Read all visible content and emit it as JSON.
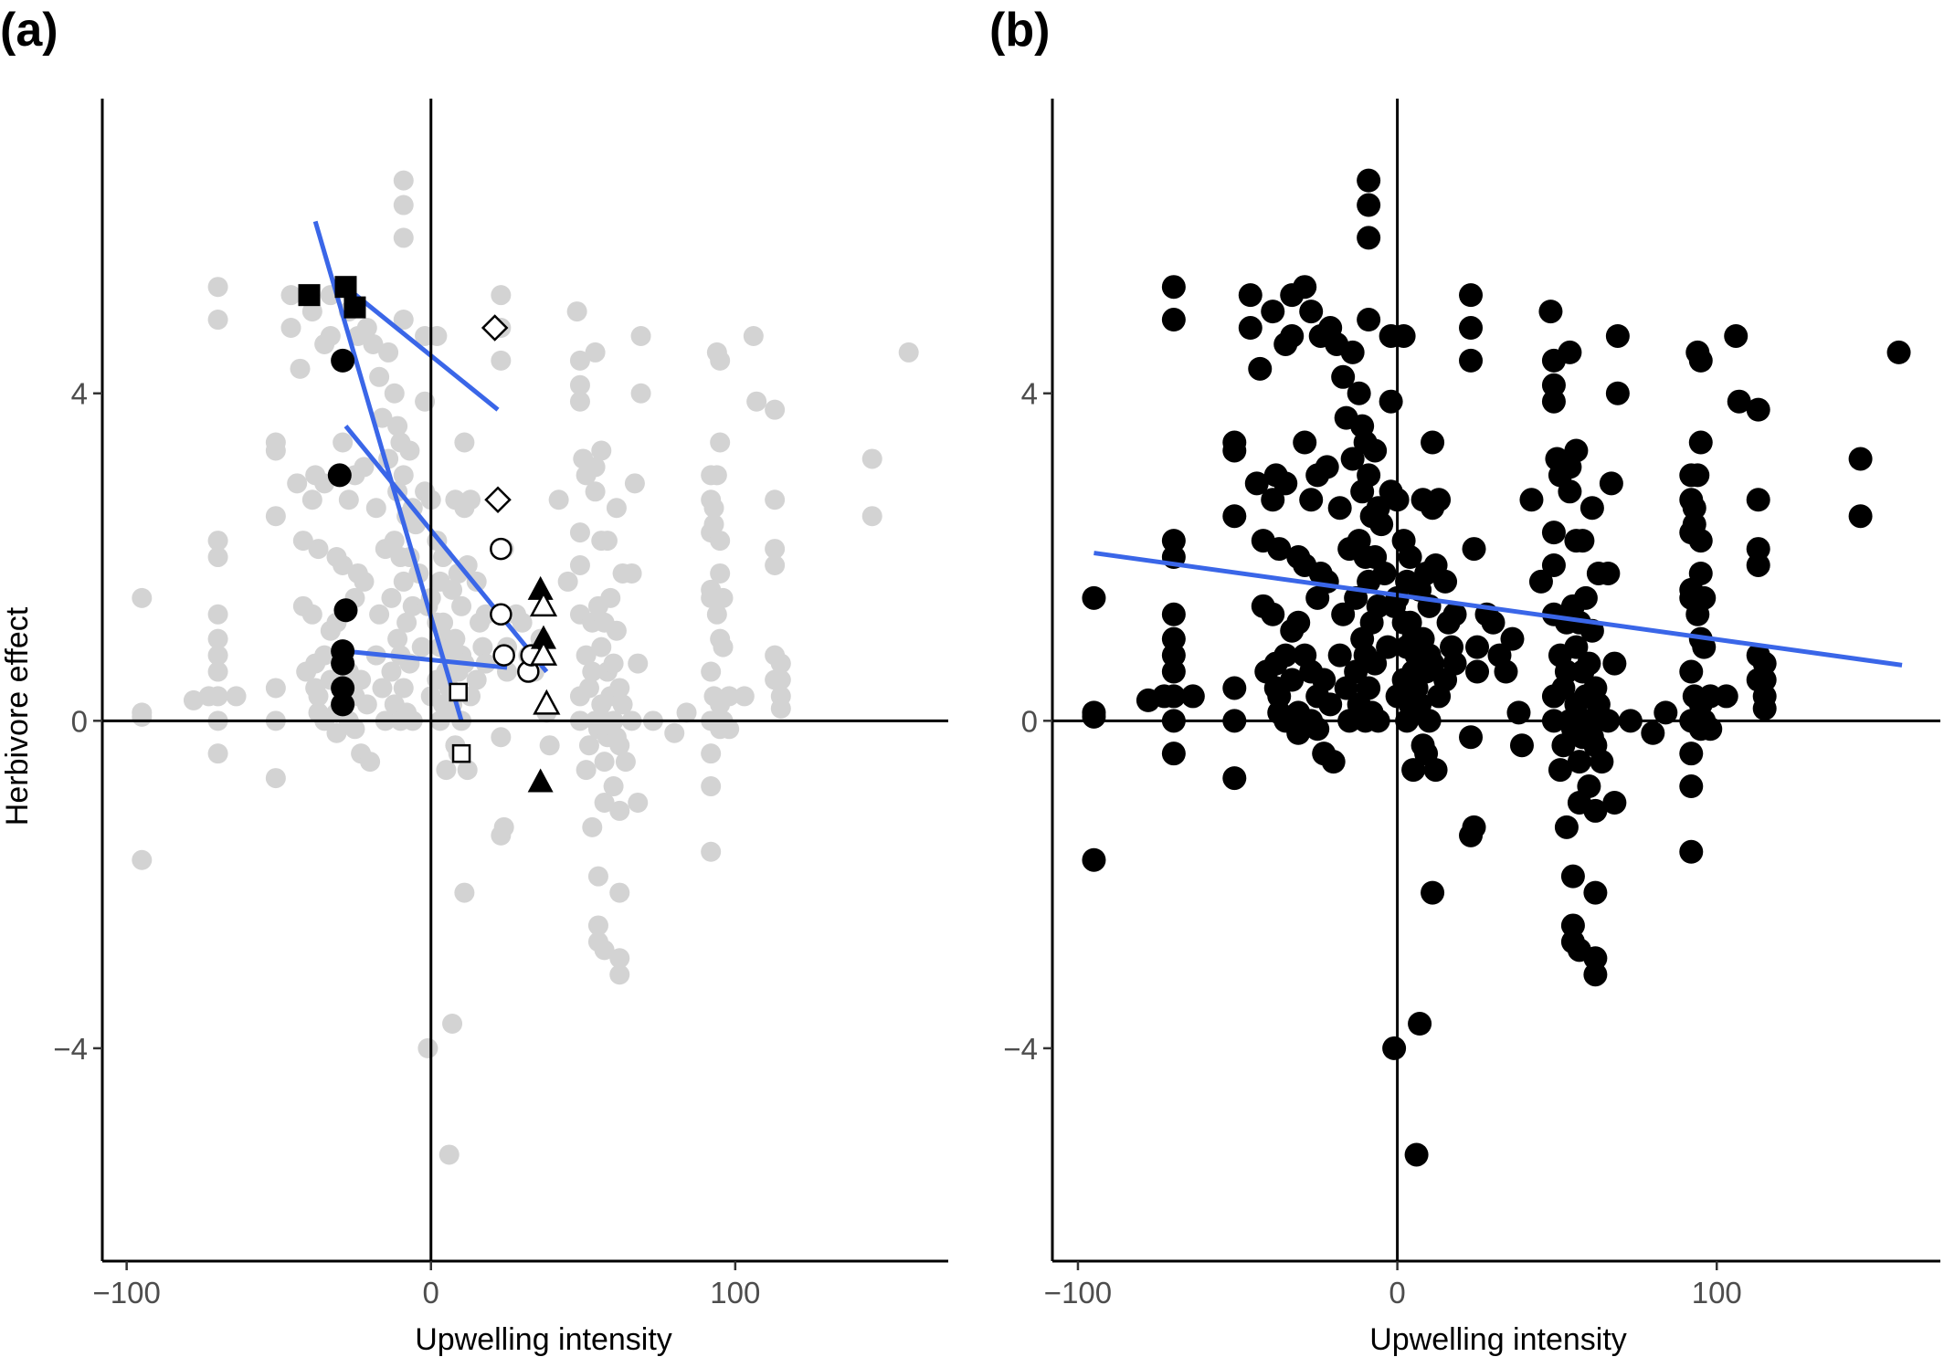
{
  "chart_data": [
    {
      "panel": "(a)",
      "type": "scatter",
      "xlabel": "Upwelling intensity",
      "ylabel": "Herbivore effect",
      "xlim": [
        -108,
        170
      ],
      "ylim": [
        -6.6,
        7.6
      ],
      "xticks": [
        -100,
        0,
        100
      ],
      "xtick_labels": [
        "−100",
        "0",
        "100"
      ],
      "yticks": [
        -4,
        0,
        4
      ],
      "ytick_labels": [
        "−4",
        "0",
        "4"
      ],
      "zero_lines": true,
      "grid": false,
      "background_color": "#d3d3d3",
      "background_points": [
        [
          -95,
          0.1
        ],
        [
          -95,
          0.05
        ],
        [
          -95,
          1.5
        ],
        [
          -95,
          -1.7
        ],
        [
          -70,
          5.3
        ],
        [
          -70,
          4.9
        ],
        [
          -70,
          2.2
        ],
        [
          -70,
          2.0
        ],
        [
          -70,
          1.3
        ],
        [
          -70,
          1.0
        ],
        [
          -70,
          0.8
        ],
        [
          -70,
          0.6
        ],
        [
          -70,
          0.3
        ],
        [
          -70,
          0.0
        ],
        [
          -70,
          -0.4
        ],
        [
          -78,
          0.25
        ],
        [
          -73,
          0.3
        ],
        [
          -64,
          0.3
        ],
        [
          -51,
          3.4
        ],
        [
          -51,
          3.3
        ],
        [
          -51,
          2.5
        ],
        [
          -51,
          0.4
        ],
        [
          -51,
          0.0
        ],
        [
          -51,
          -0.7
        ],
        [
          -46,
          5.2
        ],
        [
          -46,
          4.8
        ],
        [
          -44,
          2.9
        ],
        [
          -43,
          4.3
        ],
        [
          -42,
          1.4
        ],
        [
          -42,
          2.2
        ],
        [
          -41,
          0.6
        ],
        [
          -39,
          5.0
        ],
        [
          -39,
          2.7
        ],
        [
          -39,
          1.3
        ],
        [
          -38,
          3.0
        ],
        [
          -38,
          0.7
        ],
        [
          -38,
          0.4
        ],
        [
          -37,
          2.1
        ],
        [
          -37,
          0.3
        ],
        [
          -37,
          0.1
        ],
        [
          -35,
          4.6
        ],
        [
          -35,
          2.9
        ],
        [
          -35,
          0.8
        ],
        [
          -35,
          0.0
        ],
        [
          -33,
          5.2
        ],
        [
          -33,
          4.7
        ],
        [
          -33,
          1.1
        ],
        [
          -33,
          0.5
        ],
        [
          -31,
          2.0
        ],
        [
          -31,
          1.2
        ],
        [
          -31,
          0.1
        ],
        [
          -31,
          -0.15
        ],
        [
          -29,
          5.3
        ],
        [
          -29,
          3.4
        ],
        [
          -29,
          1.9
        ],
        [
          -29,
          0.8
        ],
        [
          -27,
          5.0
        ],
        [
          -27,
          2.7
        ],
        [
          -27,
          0.6
        ],
        [
          -27,
          0.0
        ],
        [
          -25,
          3.0
        ],
        [
          -25,
          1.5
        ],
        [
          -25,
          0.3
        ],
        [
          -25,
          -0.1
        ],
        [
          -24,
          4.7
        ],
        [
          -24,
          1.8
        ],
        [
          -23,
          0.5
        ],
        [
          -23,
          -0.4
        ],
        [
          -22,
          3.1
        ],
        [
          -22,
          1.7
        ],
        [
          -21,
          4.8
        ],
        [
          -21,
          0.2
        ],
        [
          -20,
          -0.5
        ],
        [
          -19,
          4.6
        ],
        [
          -18,
          2.6
        ],
        [
          -18,
          0.8
        ],
        [
          -17,
          4.2
        ],
        [
          -17,
          1.3
        ],
        [
          -16,
          3.7
        ],
        [
          -16,
          0.4
        ],
        [
          -15,
          2.1
        ],
        [
          -15,
          0.0
        ],
        [
          -14,
          4.5
        ],
        [
          -14,
          3.2
        ],
        [
          -13,
          1.5
        ],
        [
          -13,
          0.6
        ],
        [
          -12,
          4.0
        ],
        [
          -12,
          2.2
        ],
        [
          -12,
          0.2
        ],
        [
          -11,
          3.6
        ],
        [
          -11,
          2.8
        ],
        [
          -11,
          1.0
        ],
        [
          -10,
          3.4
        ],
        [
          -10,
          2.0
        ],
        [
          -10,
          0.8
        ],
        [
          -10,
          0.0
        ],
        [
          -9,
          6.6
        ],
        [
          -9,
          6.3
        ],
        [
          -9,
          5.9
        ],
        [
          -9,
          4.9
        ],
        [
          -9,
          3.0
        ],
        [
          -9,
          1.7
        ],
        [
          -9,
          0.4
        ],
        [
          -8,
          2.5
        ],
        [
          -8,
          1.2
        ],
        [
          -8,
          0.1
        ],
        [
          -7,
          3.3
        ],
        [
          -7,
          2.0
        ],
        [
          -7,
          0.7
        ],
        [
          -6,
          2.6
        ],
        [
          -6,
          1.4
        ],
        [
          -6,
          0.0
        ],
        [
          -5,
          2.4
        ],
        [
          -4,
          1.8
        ],
        [
          -3,
          0.9
        ],
        [
          -2,
          4.7
        ],
        [
          -2,
          3.9
        ],
        [
          -2,
          2.8
        ],
        [
          -1,
          1.4
        ],
        [
          -1,
          -4.0
        ],
        [
          0,
          2.7
        ],
        [
          0,
          1.5
        ],
        [
          0,
          0.3
        ],
        [
          2,
          4.7
        ],
        [
          2,
          2.2
        ],
        [
          2,
          1.2
        ],
        [
          2,
          0.5
        ],
        [
          3,
          1.7
        ],
        [
          3,
          0.9
        ],
        [
          3,
          0.0
        ],
        [
          4,
          2.0
        ],
        [
          4,
          1.2
        ],
        [
          4,
          0.2
        ],
        [
          5,
          1.0
        ],
        [
          5,
          0.6
        ],
        [
          5,
          0.1
        ],
        [
          5,
          -0.6
        ],
        [
          6,
          -5.3
        ],
        [
          6,
          0.8
        ],
        [
          6,
          0.4
        ],
        [
          7,
          -3.7
        ],
        [
          7,
          1.6
        ],
        [
          7,
          0.2
        ],
        [
          8,
          2.7
        ],
        [
          8,
          1.0
        ],
        [
          8,
          -0.3
        ],
        [
          9,
          1.8
        ],
        [
          9,
          0.6
        ],
        [
          9,
          -0.4
        ],
        [
          10,
          1.4
        ],
        [
          10,
          0.8
        ],
        [
          10,
          0.0
        ],
        [
          11,
          3.4
        ],
        [
          11,
          2.6
        ],
        [
          11,
          0.7
        ],
        [
          11,
          -2.1
        ],
        [
          12,
          -0.6
        ],
        [
          12,
          1.9
        ],
        [
          13,
          2.7
        ],
        [
          13,
          0.3
        ],
        [
          15,
          1.7
        ],
        [
          15,
          0.5
        ],
        [
          16,
          1.2
        ],
        [
          17,
          0.9
        ],
        [
          18,
          0.7
        ],
        [
          18,
          1.3
        ],
        [
          23,
          5.2
        ],
        [
          23,
          4.8
        ],
        [
          23,
          4.4
        ],
        [
          23,
          -0.2
        ],
        [
          23,
          -1.4
        ],
        [
          24,
          -1.3
        ],
        [
          24,
          2.1
        ],
        [
          25,
          0.9
        ],
        [
          25,
          0.6
        ],
        [
          28,
          1.3
        ],
        [
          30,
          1.2
        ],
        [
          32,
          0.8
        ],
        [
          34,
          0.6
        ],
        [
          36,
          1.0
        ],
        [
          38,
          0.1
        ],
        [
          39,
          -0.3
        ],
        [
          42,
          2.7
        ],
        [
          45,
          1.7
        ],
        [
          48,
          5.0
        ],
        [
          49,
          4.4
        ],
        [
          49,
          4.1
        ],
        [
          49,
          3.9
        ],
        [
          49,
          2.3
        ],
        [
          49,
          1.9
        ],
        [
          49,
          1.3
        ],
        [
          49,
          0.3
        ],
        [
          49,
          0.0
        ],
        [
          50,
          3.2
        ],
        [
          51,
          3.0
        ],
        [
          51,
          0.8
        ],
        [
          51,
          -0.6
        ],
        [
          52,
          0.4
        ],
        [
          52,
          -0.3
        ],
        [
          53,
          1.2
        ],
        [
          53,
          0.6
        ],
        [
          53,
          -1.3
        ],
        [
          54,
          4.5
        ],
        [
          54,
          3.1
        ],
        [
          54,
          2.8
        ],
        [
          54,
          0.0
        ],
        [
          55,
          1.4
        ],
        [
          55,
          -0.1
        ],
        [
          55,
          -1.9
        ],
        [
          55,
          -2.5
        ],
        [
          55,
          -2.7
        ],
        [
          56,
          3.3
        ],
        [
          56,
          2.2
        ],
        [
          56,
          0.9
        ],
        [
          56,
          0.2
        ],
        [
          57,
          1.2
        ],
        [
          57,
          0.0
        ],
        [
          57,
          -0.5
        ],
        [
          57,
          -1.0
        ],
        [
          57,
          -2.8
        ],
        [
          58,
          2.2
        ],
        [
          58,
          0.6
        ],
        [
          58,
          -0.2
        ],
        [
          59,
          1.5
        ],
        [
          59,
          0.3
        ],
        [
          60,
          0.7
        ],
        [
          60,
          0.0
        ],
        [
          60,
          -0.8
        ],
        [
          61,
          2.6
        ],
        [
          61,
          1.1
        ],
        [
          61,
          -0.2
        ],
        [
          62,
          0.4
        ],
        [
          62,
          -0.3
        ],
        [
          62,
          -1.1
        ],
        [
          62,
          -2.1
        ],
        [
          62,
          -2.9
        ],
        [
          62,
          -3.1
        ],
        [
          63,
          1.8
        ],
        [
          63,
          0.2
        ],
        [
          64,
          -0.5
        ],
        [
          66,
          1.8
        ],
        [
          66,
          0.0
        ],
        [
          67,
          2.9
        ],
        [
          68,
          0.7
        ],
        [
          68,
          -1.0
        ],
        [
          69,
          4.7
        ],
        [
          69,
          4.0
        ],
        [
          73,
          0.0
        ],
        [
          80,
          -0.15
        ],
        [
          84,
          0.1
        ],
        [
          92,
          3.0
        ],
        [
          92,
          2.7
        ],
        [
          92,
          2.3
        ],
        [
          92,
          1.6
        ],
        [
          92,
          1.5
        ],
        [
          92,
          0.6
        ],
        [
          92,
          0.0
        ],
        [
          92,
          -0.4
        ],
        [
          92,
          -0.8
        ],
        [
          92,
          -1.6
        ],
        [
          93,
          2.6
        ],
        [
          93,
          2.4
        ],
        [
          93,
          0.3
        ],
        [
          94,
          4.5
        ],
        [
          94,
          3.0
        ],
        [
          94,
          1.3
        ],
        [
          95,
          4.4
        ],
        [
          95,
          3.4
        ],
        [
          95,
          2.2
        ],
        [
          95,
          1.8
        ],
        [
          95,
          1.0
        ],
        [
          95,
          0.2
        ],
        [
          95,
          -0.1
        ],
        [
          96,
          1.5
        ],
        [
          96,
          0.9
        ],
        [
          96,
          0.0
        ],
        [
          98,
          0.3
        ],
        [
          98,
          -0.1
        ],
        [
          103,
          0.3
        ],
        [
          106,
          4.7
        ],
        [
          107,
          3.9
        ],
        [
          113,
          3.8
        ],
        [
          113,
          2.7
        ],
        [
          113,
          2.1
        ],
        [
          113,
          1.9
        ],
        [
          113,
          0.8
        ],
        [
          113,
          0.5
        ],
        [
          115,
          0.7
        ],
        [
          115,
          0.5
        ],
        [
          115,
          0.3
        ],
        [
          115,
          0.15
        ],
        [
          145,
          3.2
        ],
        [
          145,
          2.5
        ],
        [
          157,
          4.5
        ]
      ],
      "study_points": [
        {
          "shape": "square-filled",
          "points": [
            [
              -40,
              5.2
            ],
            [
              -28,
              5.3
            ],
            [
              -25,
              5.05
            ]
          ]
        },
        {
          "shape": "circle-filled",
          "points": [
            [
              -29,
              4.4
            ],
            [
              -30,
              3.0
            ],
            [
              -28,
              1.35
            ],
            [
              -29,
              0.85
            ],
            [
              -29,
              0.7
            ],
            [
              -29,
              0.4
            ],
            [
              -29,
              0.2
            ]
          ]
        },
        {
          "shape": "diamond-open",
          "points": [
            [
              21,
              4.8
            ],
            [
              22,
              2.7
            ]
          ]
        },
        {
          "shape": "circle-open",
          "points": [
            [
              23,
              2.1
            ],
            [
              23,
              1.3
            ],
            [
              24,
              0.8
            ],
            [
              32,
              0.6
            ],
            [
              33,
              0.8
            ]
          ]
        },
        {
          "shape": "square-open",
          "points": [
            [
              9,
              0.35
            ],
            [
              10,
              -0.4
            ]
          ]
        },
        {
          "shape": "triangle-filled",
          "points": [
            [
              36,
              1.6
            ],
            [
              37,
              1.0
            ],
            [
              36,
              -0.75
            ]
          ]
        },
        {
          "shape": "triangle-open",
          "points": [
            [
              37,
              1.4
            ],
            [
              37,
              0.8
            ],
            [
              38,
              0.2
            ]
          ]
        }
      ],
      "fit_lines": [
        {
          "x": [
            -38,
            10
          ],
          "y": [
            6.1,
            0.0
          ]
        },
        {
          "x": [
            -28,
            22
          ],
          "y": [
            5.3,
            3.8
          ]
        },
        {
          "x": [
            -28,
            38
          ],
          "y": [
            3.6,
            0.6
          ]
        },
        {
          "x": [
            -28,
            25
          ],
          "y": [
            0.85,
            0.65
          ]
        }
      ],
      "fit_color": "#3a66e8"
    },
    {
      "panel": "(b)",
      "type": "scatter",
      "xlabel": "Upwelling intensity",
      "ylabel": "",
      "xlim": [
        -108,
        170
      ],
      "ylim": [
        -6.6,
        7.6
      ],
      "xticks": [
        -100,
        0,
        100
      ],
      "xtick_labels": [
        "−100",
        "0",
        "100"
      ],
      "yticks": [
        -4,
        0,
        4
      ],
      "ytick_labels": [
        "−4",
        "0",
        "4"
      ],
      "zero_lines": true,
      "grid": false,
      "point_color": "#000000",
      "points_note": "all observations shown in black (same set as panel a background)",
      "fit_lines": [
        {
          "x": [
            -95,
            158
          ],
          "y": [
            2.05,
            0.68
          ]
        }
      ],
      "fit_color": "#3a66e8"
    }
  ]
}
